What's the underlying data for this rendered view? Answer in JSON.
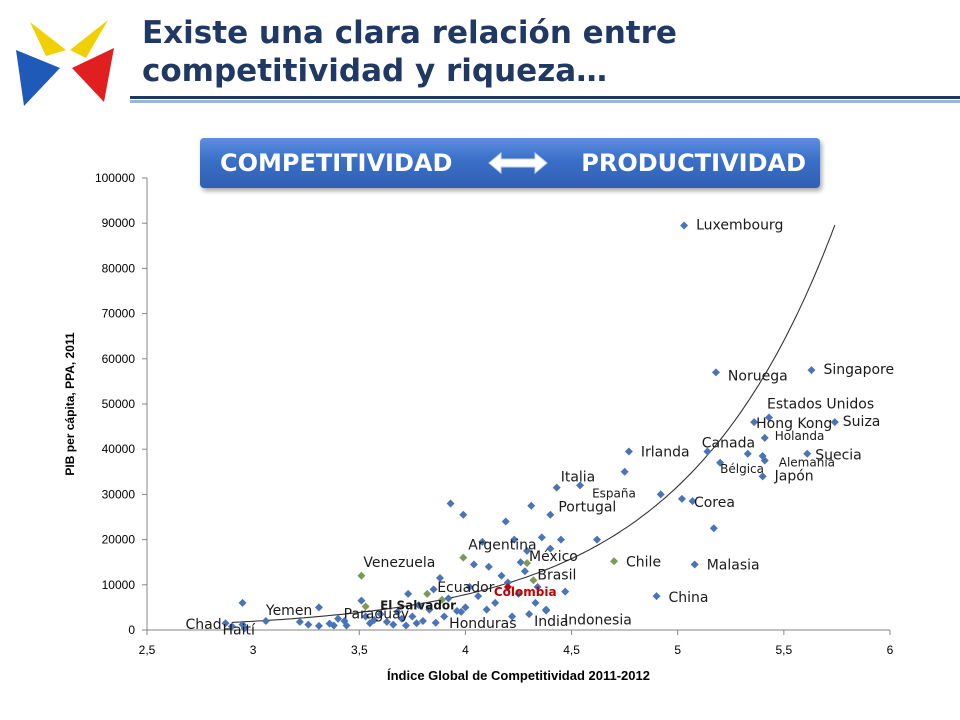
{
  "slide": {
    "title_line1": "Existe una clara relación entre",
    "title_line2": "competitividad y riqueza…",
    "logo_icon": "star-logo-icon",
    "banner_left": "COMPETITIVIDAD",
    "banner_right": "PRODUCTIVIDAD",
    "banner_arrow_icon": "double-arrow-icon"
  },
  "colors": {
    "title": "#1f3864",
    "point": "#4a74b6",
    "highlight_point": "#7b9a5a",
    "colombia_point": "#c00000",
    "colombia_label": "#c00000",
    "banner": "#3a6fc8"
  },
  "chart_data": {
    "type": "scatter",
    "title": "",
    "xlabel": "Índice Global de Competitividad 2011-2012",
    "ylabel": "PIB per cápita, PPA, 2011",
    "xlim": [
      2.5,
      6
    ],
    "ylim": [
      0,
      100000
    ],
    "xticks": [
      "2,5",
      "3",
      "3,5",
      "4",
      "4,5",
      "5",
      "5,5",
      "6"
    ],
    "yticks": [
      "0",
      "10000",
      "20000",
      "30000",
      "40000",
      "50000",
      "60000",
      "70000",
      "80000",
      "90000",
      "100000"
    ],
    "grid": false,
    "legend": "none",
    "trendline": "exponential",
    "labeled_points": [
      {
        "name": "Luxembourg",
        "x": 5.03,
        "y": 89500,
        "group": "normal"
      },
      {
        "name": "Singapore",
        "x": 5.63,
        "y": 57500,
        "group": "normal"
      },
      {
        "name": "Noruega",
        "x": 5.18,
        "y": 57000,
        "group": "normal"
      },
      {
        "name": "Estados Unidos",
        "x": 5.43,
        "y": 47000,
        "group": "normal"
      },
      {
        "name": "Hong Kong",
        "x": 5.36,
        "y": 46000,
        "group": "normal"
      },
      {
        "name": "Suiza",
        "x": 5.74,
        "y": 46000,
        "group": "normal"
      },
      {
        "name": "Holanda",
        "x": 5.41,
        "y": 42500,
        "group": "normal"
      },
      {
        "name": "Canada",
        "x": 5.33,
        "y": 39000,
        "group": "normal"
      },
      {
        "name": "Irlanda",
        "x": 4.77,
        "y": 39500,
        "group": "normal"
      },
      {
        "name": "Suecia",
        "x": 5.61,
        "y": 39000,
        "group": "normal"
      },
      {
        "name": "Bélgica",
        "x": 5.2,
        "y": 37000,
        "group": "normal"
      },
      {
        "name": "Alemania",
        "x": 5.41,
        "y": 37500,
        "group": "normal"
      },
      {
        "name": "Japón",
        "x": 5.4,
        "y": 34000,
        "group": "normal"
      },
      {
        "name": "Italia",
        "x": 4.43,
        "y": 31500,
        "group": "normal"
      },
      {
        "name": "España",
        "x": 4.54,
        "y": 32000,
        "group": "normal"
      },
      {
        "name": "Corea",
        "x": 5.02,
        "y": 29000,
        "group": "normal"
      },
      {
        "name": "Portugal",
        "x": 4.4,
        "y": 25500,
        "group": "normal"
      },
      {
        "name": "Argentina",
        "x": 3.99,
        "y": 16000,
        "group": "highlight"
      },
      {
        "name": "Chile",
        "x": 4.7,
        "y": 15200,
        "group": "highlight"
      },
      {
        "name": "Malasia",
        "x": 5.08,
        "y": 14500,
        "group": "normal"
      },
      {
        "name": "Venezuela",
        "x": 3.51,
        "y": 12000,
        "group": "highlight"
      },
      {
        "name": "México",
        "x": 4.29,
        "y": 14800,
        "group": "highlight"
      },
      {
        "name": "Brasil",
        "x": 4.32,
        "y": 11000,
        "group": "highlight"
      },
      {
        "name": "Ecuador",
        "x": 3.82,
        "y": 8000,
        "group": "highlight"
      },
      {
        "name": "Colombia",
        "x": 4.2,
        "y": 9500,
        "group": "colombia"
      },
      {
        "name": "Paraguay",
        "x": 3.53,
        "y": 5200,
        "group": "highlight"
      },
      {
        "name": "El Salvador",
        "x": 3.89,
        "y": 6700,
        "group": "highlight"
      },
      {
        "name": "China",
        "x": 4.9,
        "y": 7500,
        "group": "normal"
      },
      {
        "name": "Indonesia",
        "x": 4.38,
        "y": 4300,
        "group": "normal"
      },
      {
        "name": "Honduras",
        "x": 3.98,
        "y": 4000,
        "group": "normal"
      },
      {
        "name": "India",
        "x": 4.3,
        "y": 3500,
        "group": "normal"
      },
      {
        "name": "Chad",
        "x": 2.87,
        "y": 1500,
        "group": "normal"
      },
      {
        "name": "Haití",
        "x": 2.95,
        "y": 1200,
        "group": "normal"
      },
      {
        "name": "Yemen",
        "x": 3.06,
        "y": 2000,
        "group": "normal"
      }
    ],
    "unlabeled_points": [
      [
        2.95,
        6000
      ],
      [
        2.96,
        400
      ],
      [
        2.9,
        800
      ],
      [
        3.22,
        1800
      ],
      [
        3.26,
        1200
      ],
      [
        3.31,
        5000
      ],
      [
        3.31,
        900
      ],
      [
        3.36,
        1400
      ],
      [
        3.38,
        1000
      ],
      [
        3.4,
        2500
      ],
      [
        3.43,
        2000
      ],
      [
        3.44,
        1000
      ],
      [
        3.51,
        6500
      ],
      [
        3.53,
        3000
      ],
      [
        3.55,
        1500
      ],
      [
        3.57,
        2200
      ],
      [
        3.6,
        3500
      ],
      [
        3.63,
        1800
      ],
      [
        3.66,
        1200
      ],
      [
        3.68,
        4000
      ],
      [
        3.7,
        2500
      ],
      [
        3.72,
        1000
      ],
      [
        3.73,
        8000
      ],
      [
        3.75,
        3000
      ],
      [
        3.77,
        1500
      ],
      [
        3.78,
        5500
      ],
      [
        3.8,
        2000
      ],
      [
        3.83,
        4500
      ],
      [
        3.85,
        9000
      ],
      [
        3.86,
        1600
      ],
      [
        3.88,
        11500
      ],
      [
        3.9,
        3000
      ],
      [
        3.92,
        7000
      ],
      [
        3.93,
        28000
      ],
      [
        3.96,
        4200
      ],
      [
        3.99,
        25500
      ],
      [
        4.0,
        5000
      ],
      [
        4.02,
        9500
      ],
      [
        4.04,
        14500
      ],
      [
        4.06,
        7500
      ],
      [
        4.08,
        19500
      ],
      [
        4.1,
        4500
      ],
      [
        4.11,
        14000
      ],
      [
        4.14,
        6000
      ],
      [
        4.17,
        12000
      ],
      [
        4.19,
        24000
      ],
      [
        4.2,
        10500
      ],
      [
        4.22,
        3000
      ],
      [
        4.23,
        20000
      ],
      [
        4.25,
        8000
      ],
      [
        4.26,
        15000
      ],
      [
        4.28,
        13000
      ],
      [
        4.29,
        17500
      ],
      [
        4.31,
        27500
      ],
      [
        4.33,
        6000
      ],
      [
        4.34,
        9500
      ],
      [
        4.36,
        20500
      ],
      [
        4.38,
        4500
      ],
      [
        4.4,
        18000
      ],
      [
        4.45,
        20000
      ],
      [
        4.47,
        8500
      ],
      [
        4.62,
        20000
      ],
      [
        4.75,
        35000
      ],
      [
        4.92,
        30000
      ],
      [
        5.07,
        28500
      ],
      [
        5.17,
        22500
      ],
      [
        5.14,
        39500
      ],
      [
        5.4,
        38500
      ]
    ]
  }
}
